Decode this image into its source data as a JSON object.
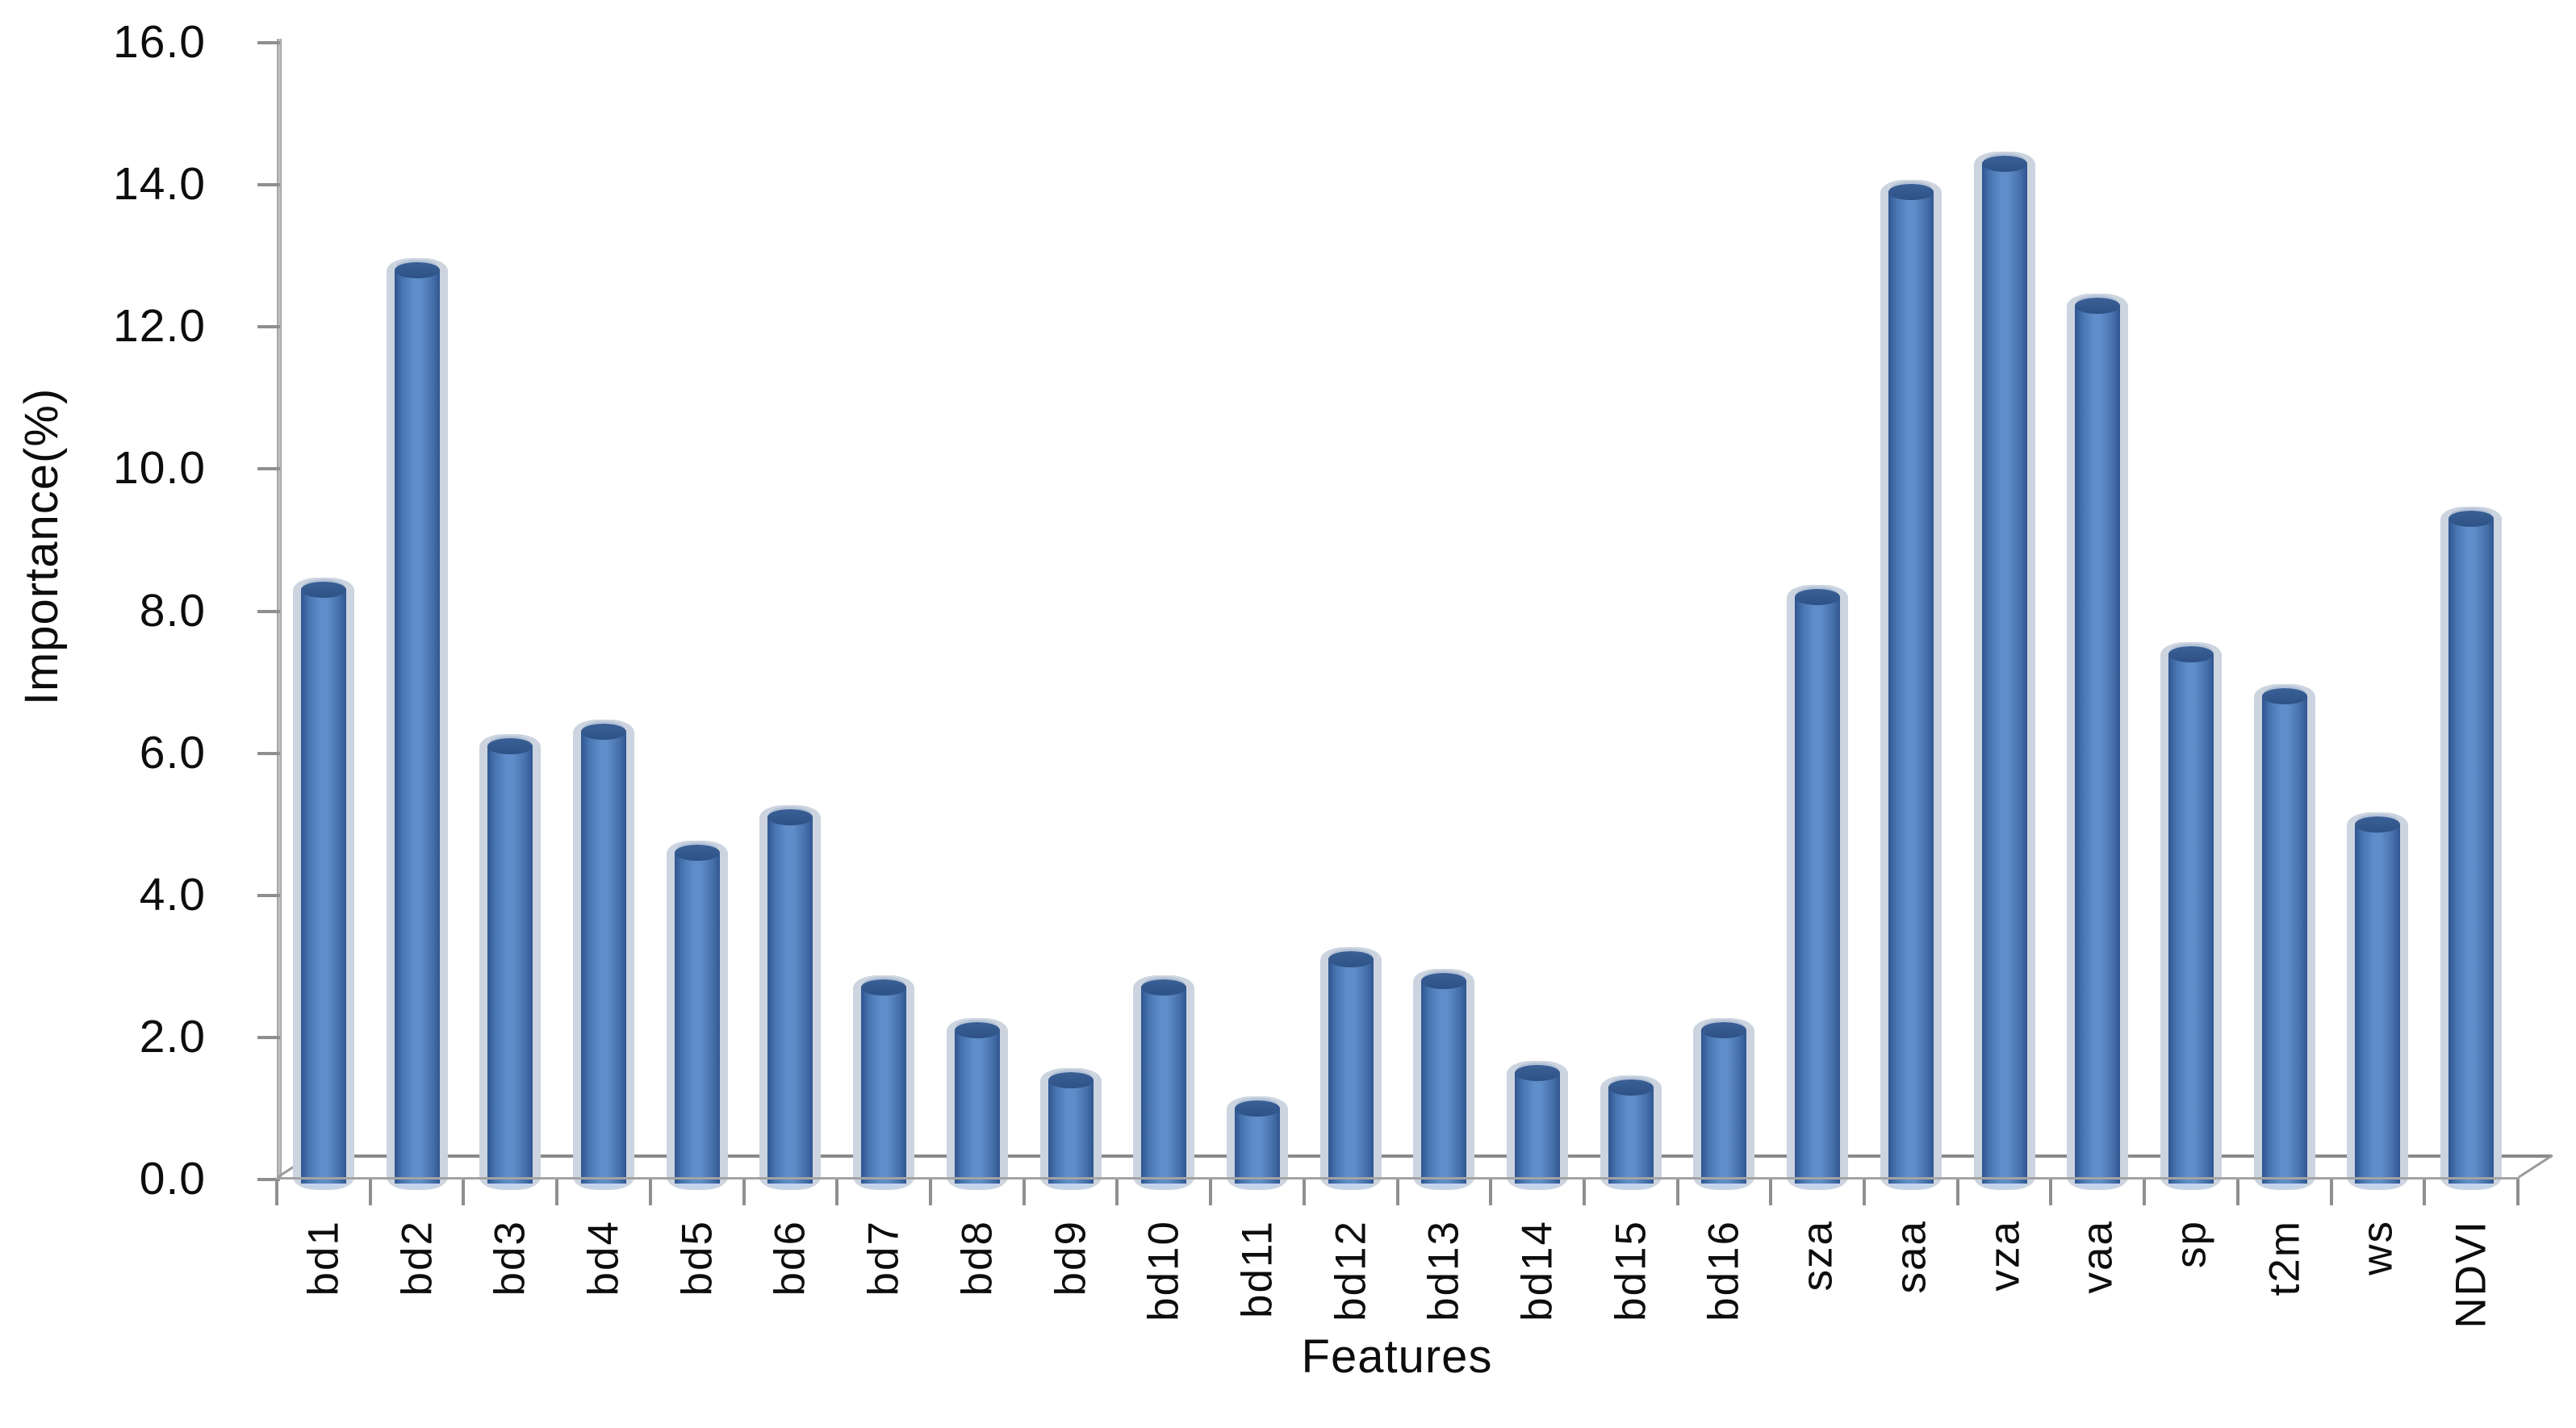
{
  "chart_data": {
    "type": "bar",
    "title": "",
    "xlabel": "Features",
    "ylabel": "Importance(%)",
    "categories": [
      "bd1",
      "bd2",
      "bd3",
      "bd4",
      "bd5",
      "bd6",
      "bd7",
      "bd8",
      "bd9",
      "bd10",
      "bd11",
      "bd12",
      "bd13",
      "bd14",
      "bd15",
      "bd16",
      "sza",
      "saa",
      "vza",
      "vaa",
      "sp",
      "t2m",
      "ws",
      "NDVI"
    ],
    "values": [
      8.4,
      12.9,
      6.2,
      6.4,
      4.7,
      5.2,
      2.8,
      2.2,
      1.5,
      2.8,
      1.1,
      3.2,
      2.9,
      1.6,
      1.4,
      2.2,
      8.3,
      14.0,
      14.4,
      12.4,
      7.5,
      6.9,
      5.1,
      9.4
    ],
    "ylim": [
      0,
      16
    ],
    "ytick_step": 2,
    "ytick_labels": [
      "0.0",
      "2.0",
      "4.0",
      "6.0",
      "8.0",
      "10.0",
      "12.0",
      "14.0",
      "16.0"
    ],
    "grid": false,
    "legend": "none",
    "bar_style": "3d-cylinder"
  },
  "colors": {
    "bar_main": "#4f81bd",
    "bar_edge_dark": "#2f5590",
    "bar_highlight": "#5f8dc9",
    "bar_cap": "#35598f",
    "bar_shadow": "#ccd4e0",
    "axis_line": "#9b9b9b",
    "tick_mark": "#8f8f8f",
    "text": "#0d0d0d",
    "background": "#ffffff"
  }
}
